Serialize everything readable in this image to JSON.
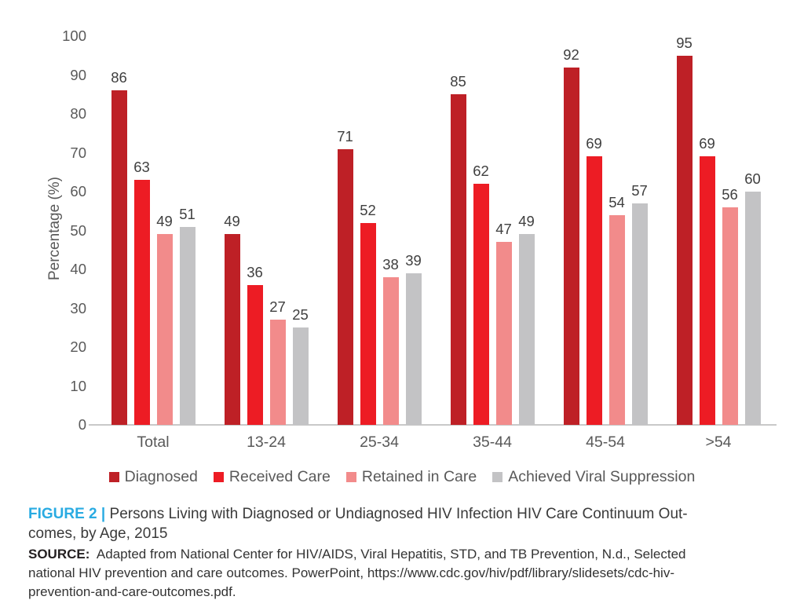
{
  "chart_data": {
    "type": "bar",
    "title": "",
    "categories": [
      "Total",
      "13-24",
      "25-34",
      "35-44",
      "45-54",
      ">54"
    ],
    "series": [
      {
        "name": "Diagnosed",
        "color": "#be2026",
        "values": [
          86,
          49,
          71,
          85,
          92,
          95
        ]
      },
      {
        "name": "Received Care",
        "color": "#ed1c24",
        "values": [
          63,
          36,
          52,
          62,
          69,
          69
        ]
      },
      {
        "name": "Retained in Care",
        "color": "#f28b8b",
        "values": [
          49,
          27,
          38,
          47,
          54,
          56
        ]
      },
      {
        "name": "Achieved Viral Suppression",
        "color": "#c3c3c5",
        "values": [
          51,
          25,
          39,
          49,
          57,
          60
        ]
      }
    ],
    "xlabel": "",
    "ylabel": "Percentage (%)",
    "ylim": [
      0,
      100
    ],
    "yticks": [
      0,
      10,
      20,
      30,
      40,
      50,
      60,
      70,
      80,
      90,
      100
    ],
    "grid": false,
    "legend_position": "bottom",
    "value_labels": true
  },
  "caption": {
    "figure_label": "FIGURE 2 |",
    "lines": [
      "Persons Living with Diagnosed or Undiagnosed HIV Infection HIV Care Continuum Out-",
      "comes, by Age, 2015"
    ],
    "accent_color": "#29abe2"
  },
  "source": {
    "label": "SOURCE:",
    "lines": [
      "Adapted from National Center for HIV/AIDS, Viral Hepatitis, STD, and TB Prevention, N.d., Selected",
      "national HIV prevention and care outcomes. PowerPoint, https://www.cdc.gov/hiv/pdf/library/slidesets/cdc-hiv-",
      "prevention-and-care-outcomes.pdf."
    ]
  }
}
